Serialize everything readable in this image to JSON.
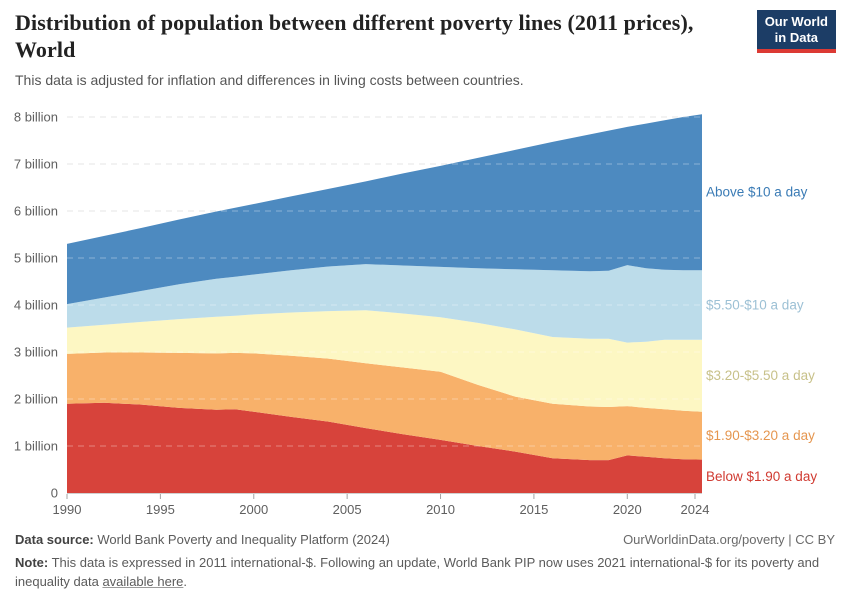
{
  "header": {
    "title": "Distribution of population between different poverty lines (2011 prices), World",
    "subtitle": "This data is adjusted for inflation and differences in living costs between countries.",
    "logo_line1": "Our World",
    "logo_line2": "in Data",
    "logo_bg": "#1c3d66",
    "logo_underline": "#dc3a34"
  },
  "chart_data": {
    "type": "area",
    "stacked": true,
    "title": "Distribution of population between different poverty lines (2011 prices), World",
    "xlabel": "",
    "ylabel": "",
    "unit": "billion people",
    "ylim": [
      0,
      8.3
    ],
    "grid": "dashed horizontal",
    "legend_position": "right-of-plot, aligned to band midpoints",
    "x": [
      1990,
      1992,
      1994,
      1996,
      1998,
      1999,
      2000,
      2002,
      2004,
      2006,
      2008,
      2010,
      2012,
      2014,
      2016,
      2018,
      2019,
      2020,
      2021,
      2022,
      2023,
      2024
    ],
    "series": [
      {
        "id": "below-190",
        "label": "Below $1.90 a day",
        "color": "#d7433b",
        "label_color": "#d03a31",
        "values": [
          1.9,
          1.92,
          1.88,
          1.81,
          1.77,
          1.78,
          1.73,
          1.62,
          1.52,
          1.38,
          1.25,
          1.13,
          1.0,
          0.88,
          0.74,
          0.7,
          0.7,
          0.8,
          0.77,
          0.74,
          0.72,
          0.71
        ]
      },
      {
        "id": "190-320",
        "label": "$1.90-$3.20 a day",
        "color": "#f8b16a",
        "label_color": "#e5964f",
        "values": [
          1.06,
          1.07,
          1.11,
          1.17,
          1.2,
          1.2,
          1.24,
          1.3,
          1.34,
          1.38,
          1.42,
          1.45,
          1.3,
          1.17,
          1.16,
          1.14,
          1.13,
          1.05,
          1.04,
          1.04,
          1.03,
          1.02
        ]
      },
      {
        "id": "320-550",
        "label": "$3.20-$5.50 a day",
        "color": "#fdf7c3",
        "label_color": "#c8c18a",
        "values": [
          0.56,
          0.59,
          0.65,
          0.72,
          0.78,
          0.79,
          0.83,
          0.92,
          1.01,
          1.13,
          1.15,
          1.16,
          1.32,
          1.43,
          1.42,
          1.44,
          1.45,
          1.35,
          1.41,
          1.48,
          1.51,
          1.53
        ]
      },
      {
        "id": "550-10",
        "label": "$5.50-$10 a day",
        "color": "#bcdcea",
        "label_color": "#9dc1d5",
        "values": [
          0.5,
          0.58,
          0.66,
          0.74,
          0.81,
          0.83,
          0.85,
          0.9,
          0.95,
          0.98,
          1.02,
          1.07,
          1.16,
          1.28,
          1.42,
          1.44,
          1.45,
          1.65,
          1.56,
          1.49,
          1.48,
          1.48
        ]
      },
      {
        "id": "above-10",
        "label": "Above $10 a day",
        "color": "#4d8ac0",
        "label_color": "#3a7bb5",
        "values": [
          1.28,
          1.31,
          1.34,
          1.38,
          1.43,
          1.47,
          1.5,
          1.57,
          1.65,
          1.76,
          1.96,
          2.15,
          2.35,
          2.54,
          2.73,
          2.91,
          2.98,
          2.94,
          3.08,
          3.18,
          3.26,
          3.32
        ]
      }
    ],
    "yticks": [
      {
        "v": 0,
        "label": "0"
      },
      {
        "v": 1,
        "label": "1 billion"
      },
      {
        "v": 2,
        "label": "2 billion"
      },
      {
        "v": 3,
        "label": "3 billion"
      },
      {
        "v": 4,
        "label": "4 billion"
      },
      {
        "v": 5,
        "label": "5 billion"
      },
      {
        "v": 6,
        "label": "6 billion"
      },
      {
        "v": 7,
        "label": "7 billion"
      },
      {
        "v": 8,
        "label": "8 billion"
      }
    ],
    "xticks": [
      1990,
      1995,
      2000,
      2005,
      2010,
      2015,
      2020,
      2024
    ]
  },
  "footer": {
    "data_source_label": "Data source:",
    "data_source_value": " World Bank Poverty and Inequality Platform (2024)",
    "attribution": "OurWorldinData.org/poverty | CC BY",
    "note_label": "Note:",
    "note_text": " This data is expressed in 2011 international-$. Following an update, World Bank PIP now uses 2021 international-$ for its poverty and inequality data ",
    "note_link": "available here",
    "note_suffix": "."
  }
}
